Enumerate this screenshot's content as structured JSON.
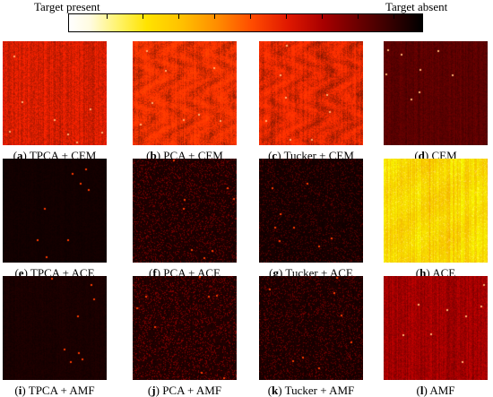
{
  "colorbar": {
    "left_label": "Target present",
    "right_label": "Target absent",
    "gradient_colors": [
      "#ffffff",
      "#fff36a",
      "#ffc000",
      "#ff4a00",
      "#a80000",
      "#000000"
    ]
  },
  "panels": [
    {
      "letter": "a",
      "method": "TPCA + CEM",
      "base_color": "#d81e00",
      "texture": "fine"
    },
    {
      "letter": "b",
      "method": "PCA + CEM",
      "base_color": "#ee3000",
      "texture": "veined"
    },
    {
      "letter": "c",
      "method": "Tucker + CEM",
      "base_color": "#e22800",
      "texture": "veined"
    },
    {
      "letter": "d",
      "method": "CEM",
      "base_color": "#5a0000",
      "texture": "fine"
    },
    {
      "letter": "e",
      "method": "TPCA + ACE",
      "base_color": "#120000",
      "texture": "sparse"
    },
    {
      "letter": "f",
      "method": "PCA + ACE",
      "base_color": "#1e0000",
      "texture": "speckle"
    },
    {
      "letter": "g",
      "method": "Tucker + ACE",
      "base_color": "#160000",
      "texture": "speckle"
    },
    {
      "letter": "h",
      "method": "ACE",
      "base_color": "#ffd600",
      "texture": "bright"
    },
    {
      "letter": "i",
      "method": "TPCA + AMF",
      "base_color": "#1a0000",
      "texture": "sparse"
    },
    {
      "letter": "j",
      "method": "PCA + AMF",
      "base_color": "#220000",
      "texture": "speckle"
    },
    {
      "letter": "k",
      "method": "Tucker + AMF",
      "base_color": "#1c0000",
      "texture": "speckle"
    },
    {
      "letter": "l",
      "method": "AMF",
      "base_color": "#a00000",
      "texture": "fine"
    }
  ]
}
